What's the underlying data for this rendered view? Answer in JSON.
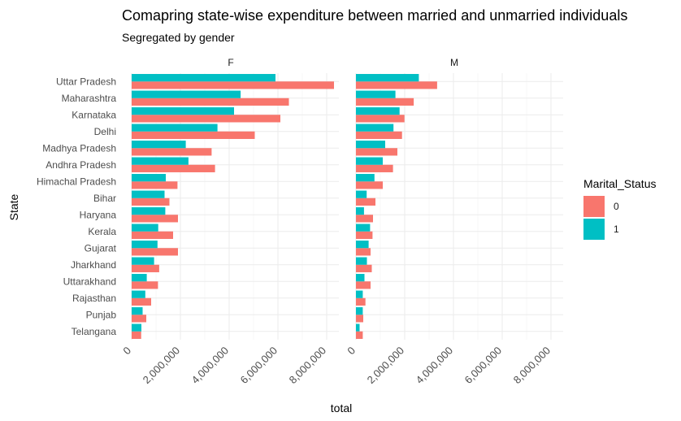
{
  "chart_data": {
    "type": "bar",
    "orientation": "horizontal",
    "title": "Comapring state-wise expenditure between married and unmarried individuals",
    "subtitle": "Segregated by gender",
    "xlabel": "total",
    "ylabel": "State",
    "xlim": [
      0,
      8500000
    ],
    "xticks": [
      0,
      2000000,
      4000000,
      6000000,
      8000000
    ],
    "xtick_labels": [
      "0",
      "2,000,000",
      "4,000,000",
      "6,000,000",
      "8,000,000"
    ],
    "grid": true,
    "legend": {
      "title": "Marital_Status",
      "position": "right",
      "entries": [
        {
          "label": "0",
          "color": "#F8766D"
        },
        {
          "label": "1",
          "color": "#00BFC4"
        }
      ]
    },
    "categories": [
      "Uttar Pradesh",
      "Maharashtra",
      "Karnataka",
      "Delhi",
      "Madhya Pradesh",
      "Andhra Pradesh",
      "Himachal Pradesh",
      "Bihar",
      "Haryana",
      "Kerala",
      "Gujarat",
      "Jharkhand",
      "Uttarakhand",
      "Rajasthan",
      "Punjab",
      "Telangana"
    ],
    "facets": [
      {
        "name": "F",
        "series": [
          {
            "name": "0",
            "values": [
              8300000,
              6450000,
              6100000,
              5050000,
              3280000,
              3420000,
              1880000,
              1550000,
              1900000,
              1700000,
              1900000,
              1130000,
              1080000,
              800000,
              600000,
              390000
            ]
          },
          {
            "name": "1",
            "values": [
              5900000,
              4470000,
              4200000,
              3520000,
              2220000,
              2330000,
              1400000,
              1350000,
              1380000,
              1090000,
              1060000,
              920000,
              620000,
              560000,
              450000,
              400000
            ]
          }
        ]
      },
      {
        "name": "M",
        "series": [
          {
            "name": "0",
            "values": [
              3330000,
              2370000,
              1990000,
              1890000,
              1700000,
              1520000,
              1100000,
              800000,
              700000,
              680000,
              600000,
              650000,
              600000,
              390000,
              300000,
              280000
            ]
          },
          {
            "name": "1",
            "values": [
              2580000,
              1620000,
              1790000,
              1540000,
              1200000,
              1100000,
              760000,
              440000,
              330000,
              580000,
              520000,
              450000,
              350000,
              280000,
              280000,
              150000
            ]
          }
        ]
      }
    ]
  }
}
